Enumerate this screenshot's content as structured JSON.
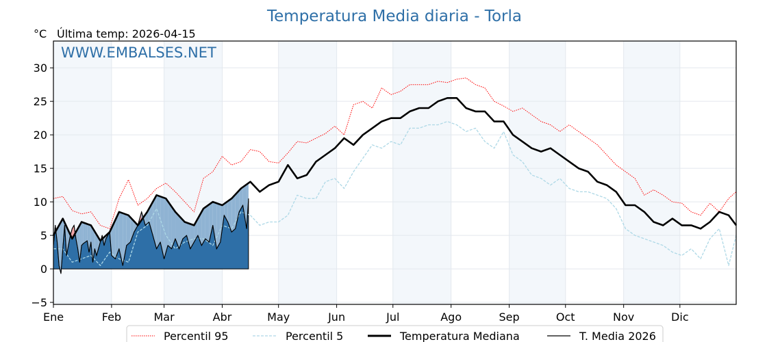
{
  "chart_data": {
    "type": "line",
    "title": "Temperatura Media diaria - Torla",
    "unit_label": "°C",
    "subtitle": "Última temp: 2026-04-15",
    "watermark": "WWW.EMBALSES.NET",
    "xlabel": "",
    "ylabel": "°C",
    "ylim": [
      -5.3,
      34
    ],
    "xlim_day_of_year": [
      1,
      365
    ],
    "grid": true,
    "legend_position": "bottom-center",
    "y_ticks": [
      -5,
      0,
      5,
      10,
      15,
      20,
      25,
      30
    ],
    "y_tick_labels": [
      "−5",
      "0",
      "5",
      "10",
      "15",
      "20",
      "25",
      "30"
    ],
    "x_ticks": [
      {
        "day": 1,
        "label": "Ene"
      },
      {
        "day": 32,
        "label": "Feb"
      },
      {
        "day": 60,
        "label": "Mar"
      },
      {
        "day": 91,
        "label": "Abr"
      },
      {
        "day": 121,
        "label": "May"
      },
      {
        "day": 152,
        "label": "Jun"
      },
      {
        "day": 182,
        "label": "Jul"
      },
      {
        "day": 213,
        "label": "Ago"
      },
      {
        "day": 244,
        "label": "Sep"
      },
      {
        "day": 274,
        "label": "Oct"
      },
      {
        "day": 305,
        "label": "Nov"
      },
      {
        "day": 335,
        "label": "Dic"
      }
    ],
    "shaded_months": [
      "Ene",
      "Mar",
      "May",
      "Jul",
      "Sep",
      "Nov"
    ],
    "x_days": [
      1,
      6,
      11,
      16,
      21,
      26,
      31,
      36,
      41,
      46,
      51,
      56,
      61,
      66,
      71,
      76,
      81,
      86,
      91,
      96,
      101,
      106,
      111,
      116,
      121,
      126,
      131,
      136,
      141,
      146,
      151,
      156,
      161,
      166,
      171,
      176,
      181,
      186,
      191,
      196,
      201,
      206,
      211,
      216,
      221,
      226,
      231,
      236,
      241,
      246,
      251,
      256,
      261,
      266,
      271,
      276,
      281,
      286,
      291,
      296,
      301,
      306,
      311,
      316,
      321,
      326,
      331,
      336,
      341,
      346,
      351,
      356,
      361,
      365
    ],
    "series": [
      {
        "name": "Percentil 95",
        "color": "#ff0000",
        "style": "dotted",
        "values": [
          10.5,
          10.8,
          8.7,
          8.2,
          8.5,
          6.5,
          6.0,
          10.5,
          13.3,
          9.5,
          10.5,
          12.0,
          12.8,
          11.5,
          10.0,
          8.5,
          13.5,
          14.5,
          16.8,
          15.5,
          16.0,
          17.8,
          17.5,
          16.0,
          15.8,
          17.3,
          19.0,
          18.8,
          19.5,
          20.2,
          21.3,
          20.0,
          24.5,
          25.0,
          24.0,
          27.0,
          26.0,
          26.5,
          27.5,
          27.5,
          27.5,
          28.0,
          27.8,
          28.3,
          28.5,
          27.5,
          27.0,
          25.0,
          24.3,
          23.5,
          24.0,
          23.0,
          22.0,
          21.5,
          20.5,
          21.5,
          20.5,
          19.5,
          18.5,
          17.0,
          15.5,
          14.5,
          13.5,
          11.0,
          11.8,
          11.0,
          10.0,
          9.8,
          8.5,
          8.0,
          9.8,
          8.5,
          10.5,
          11.5
        ]
      },
      {
        "name": "Percentil 5",
        "color": "#add8e6",
        "style": "dashed",
        "values": [
          3.0,
          3.0,
          1.0,
          1.5,
          2.0,
          0.5,
          2.5,
          1.5,
          1.0,
          5.5,
          6.5,
          9.0,
          5.0,
          3.0,
          4.0,
          4.5,
          4.5,
          3.5,
          6.5,
          6.0,
          8.5,
          8.0,
          6.5,
          7.0,
          7.0,
          8.0,
          11.0,
          10.5,
          10.5,
          13.0,
          13.5,
          12.0,
          14.5,
          16.5,
          18.5,
          18.0,
          19.0,
          18.5,
          21.0,
          21.0,
          21.5,
          21.5,
          22.0,
          21.5,
          20.5,
          21.0,
          19.0,
          18.0,
          20.5,
          17.0,
          16.0,
          14.0,
          13.5,
          12.5,
          13.5,
          12.0,
          11.5,
          11.5,
          11.0,
          10.5,
          9.0,
          6.0,
          5.0,
          4.5,
          4.0,
          3.5,
          2.5,
          2.0,
          3.0,
          1.5,
          4.5,
          6.0,
          0.5,
          5.0
        ]
      },
      {
        "name": "Temperatura Mediana",
        "color": "#000000",
        "style": "solid-thick",
        "values": [
          5.0,
          7.5,
          4.5,
          7.0,
          6.5,
          4.2,
          5.5,
          8.5,
          8.0,
          6.5,
          8.5,
          11.0,
          10.5,
          8.5,
          7.0,
          6.5,
          9.0,
          10.0,
          9.5,
          10.5,
          12.0,
          13.0,
          11.5,
          12.5,
          13.0,
          15.5,
          13.5,
          14.0,
          16.0,
          17.0,
          18.0,
          19.5,
          18.5,
          20.0,
          21.0,
          22.0,
          22.5,
          22.5,
          23.5,
          24.0,
          24.0,
          25.0,
          25.5,
          25.5,
          24.0,
          23.5,
          23.5,
          22.0,
          22.0,
          20.0,
          19.0,
          18.0,
          17.5,
          18.0,
          17.0,
          16.0,
          15.0,
          14.5,
          13.0,
          12.5,
          11.5,
          9.5,
          9.5,
          8.5,
          7.0,
          6.5,
          7.5,
          6.5,
          6.5,
          6.0,
          7.0,
          8.5,
          8.0,
          6.5
        ]
      }
    ],
    "current_year_series": {
      "name": "T. Media 2026",
      "color": "#000000",
      "style": "solid-thin",
      "fill_below_color": "#2e6fa7",
      "fill_between_median_color": "#8fb3d3",
      "fill_above_median_color": "#f4a6a6",
      "x_days": [
        1,
        2,
        3,
        4,
        5,
        6,
        7,
        8,
        9,
        10,
        11,
        12,
        13,
        14,
        15,
        16,
        17,
        18,
        19,
        20,
        21,
        22,
        23,
        24,
        25,
        26,
        27,
        28,
        29,
        30,
        31,
        32,
        34,
        36,
        38,
        40,
        42,
        44,
        46,
        48,
        50,
        52,
        54,
        56,
        58,
        60,
        62,
        64,
        66,
        68,
        70,
        72,
        74,
        76,
        78,
        80,
        82,
        84,
        86,
        88,
        90,
        92,
        94,
        96,
        98,
        100,
        102,
        104,
        105
      ],
      "values": [
        3.5,
        6.5,
        4.0,
        0.5,
        -0.7,
        3.0,
        6.5,
        2.0,
        3.5,
        5.0,
        6.0,
        6.5,
        4.5,
        3.0,
        1.0,
        3.5,
        3.8,
        4.0,
        4.2,
        2.5,
        4.0,
        1.0,
        3.0,
        2.0,
        3.0,
        4.0,
        5.0,
        3.5,
        4.5,
        5.0,
        5.5,
        2.0,
        1.5,
        3.0,
        0.5,
        3.5,
        4.0,
        5.5,
        6.5,
        8.5,
        6.5,
        7.0,
        5.0,
        3.0,
        4.0,
        1.5,
        3.5,
        3.0,
        4.5,
        3.0,
        4.5,
        5.0,
        3.0,
        4.0,
        5.0,
        3.5,
        4.5,
        4.0,
        6.5,
        3.0,
        4.0,
        8.0,
        7.0,
        5.5,
        6.0,
        8.5,
        9.5,
        6.0,
        10.5
      ]
    }
  },
  "legend": [
    {
      "label": "Percentil 95",
      "style": "dotted",
      "color": "#ff0000"
    },
    {
      "label": "Percentil 5",
      "style": "dashed",
      "color": "#add8e6"
    },
    {
      "label": "Temperatura Mediana",
      "style": "solid-thick",
      "color": "#000000"
    },
    {
      "label": "T. Media 2026",
      "style": "solid-thin",
      "color": "#000000"
    }
  ]
}
